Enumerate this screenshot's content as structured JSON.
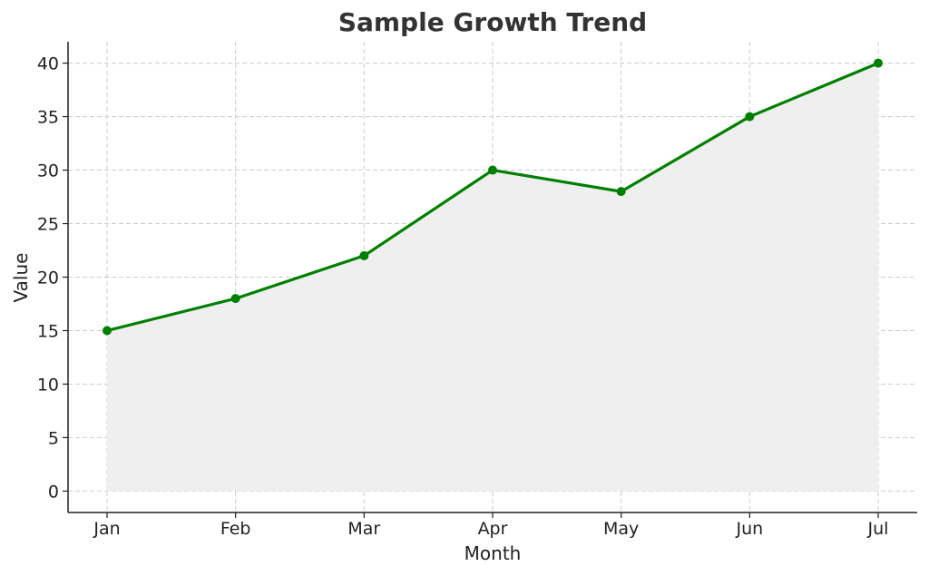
{
  "chart_data": {
    "type": "area",
    "title": "Sample Growth Trend",
    "xlabel": "Month",
    "ylabel": "Value",
    "categories": [
      "Jan",
      "Feb",
      "Mar",
      "Apr",
      "May",
      "Jun",
      "Jul"
    ],
    "series": [
      {
        "values": [
          15,
          18,
          22,
          30,
          28,
          35,
          40
        ],
        "color": "#008000",
        "markers": true,
        "fill": true
      }
    ],
    "fill_color": "#efefef",
    "ylim": [
      -2,
      42
    ],
    "yticks": [
      0,
      5,
      10,
      15,
      20,
      25,
      30,
      35,
      40
    ],
    "grid": true
  }
}
